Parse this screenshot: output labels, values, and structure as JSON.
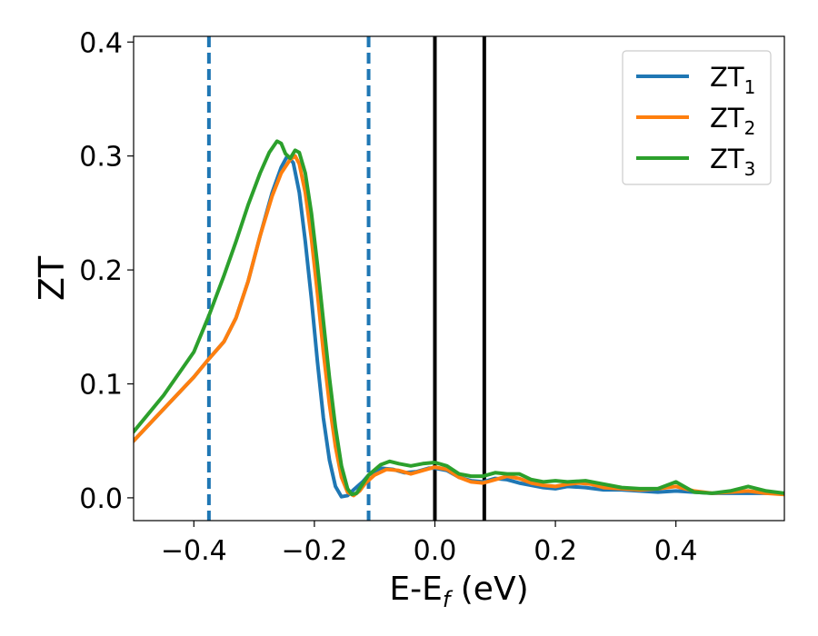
{
  "chart_data": {
    "type": "line",
    "xlabel": "E-E",
    "xlabel_sub": "f",
    "xlabel_unit": " (eV)",
    "ylabel": "ZT",
    "xlim": [
      -0.5,
      0.58
    ],
    "ylim": [
      -0.02,
      0.405
    ],
    "xticks": [
      -0.4,
      -0.2,
      0.0,
      0.2,
      0.4
    ],
    "xtick_labels": [
      "−0.4",
      "−0.2",
      "0.0",
      "0.2",
      "0.4"
    ],
    "yticks": [
      0.0,
      0.1,
      0.2,
      0.3,
      0.4
    ],
    "ytick_labels": [
      "0.0",
      "0.1",
      "0.2",
      "0.3",
      "0.4"
    ],
    "grid": false,
    "legend_position": "top-right",
    "vlines": [
      {
        "x": -0.375,
        "style": "dashed",
        "color": "#1f77b4"
      },
      {
        "x": -0.11,
        "style": "dashed",
        "color": "#1f77b4"
      },
      {
        "x": 0.0,
        "style": "solid",
        "color": "#000000"
      },
      {
        "x": 0.082,
        "style": "solid",
        "color": "#000000"
      }
    ],
    "series": [
      {
        "name": "ZT",
        "name_sub": "1",
        "color": "#1f77b4",
        "points": [
          [
            -0.5,
            0.05
          ],
          [
            -0.45,
            0.078
          ],
          [
            -0.4,
            0.106
          ],
          [
            -0.375,
            0.122
          ],
          [
            -0.35,
            0.137
          ],
          [
            -0.33,
            0.158
          ],
          [
            -0.31,
            0.19
          ],
          [
            -0.29,
            0.23
          ],
          [
            -0.27,
            0.268
          ],
          [
            -0.255,
            0.29
          ],
          [
            -0.245,
            0.3
          ],
          [
            -0.235,
            0.294
          ],
          [
            -0.225,
            0.268
          ],
          [
            -0.215,
            0.225
          ],
          [
            -0.205,
            0.175
          ],
          [
            -0.195,
            0.12
          ],
          [
            -0.185,
            0.07
          ],
          [
            -0.175,
            0.033
          ],
          [
            -0.165,
            0.01
          ],
          [
            -0.155,
            0.001
          ],
          [
            -0.145,
            0.002
          ],
          [
            -0.135,
            0.007
          ],
          [
            -0.12,
            0.014
          ],
          [
            -0.11,
            0.02
          ],
          [
            -0.09,
            0.026
          ],
          [
            -0.07,
            0.025
          ],
          [
            -0.05,
            0.022
          ],
          [
            -0.03,
            0.023
          ],
          [
            -0.01,
            0.026
          ],
          [
            0.0,
            0.026
          ],
          [
            0.02,
            0.024
          ],
          [
            0.04,
            0.018
          ],
          [
            0.06,
            0.015
          ],
          [
            0.08,
            0.014
          ],
          [
            0.1,
            0.017
          ],
          [
            0.12,
            0.016
          ],
          [
            0.14,
            0.013
          ],
          [
            0.16,
            0.011
          ],
          [
            0.18,
            0.009
          ],
          [
            0.2,
            0.008
          ],
          [
            0.22,
            0.01
          ],
          [
            0.25,
            0.009
          ],
          [
            0.28,
            0.007
          ],
          [
            0.31,
            0.007
          ],
          [
            0.34,
            0.006
          ],
          [
            0.37,
            0.005
          ],
          [
            0.4,
            0.006
          ],
          [
            0.43,
            0.005
          ],
          [
            0.46,
            0.004
          ],
          [
            0.49,
            0.004
          ],
          [
            0.52,
            0.004
          ],
          [
            0.55,
            0.004
          ],
          [
            0.58,
            0.004
          ]
        ]
      },
      {
        "name": "ZT",
        "name_sub": "2",
        "color": "#ff7f0e",
        "points": [
          [
            -0.5,
            0.05
          ],
          [
            -0.45,
            0.078
          ],
          [
            -0.4,
            0.106
          ],
          [
            -0.375,
            0.122
          ],
          [
            -0.35,
            0.137
          ],
          [
            -0.33,
            0.158
          ],
          [
            -0.31,
            0.19
          ],
          [
            -0.29,
            0.23
          ],
          [
            -0.27,
            0.265
          ],
          [
            -0.255,
            0.285
          ],
          [
            -0.24,
            0.297
          ],
          [
            -0.232,
            0.3
          ],
          [
            -0.225,
            0.293
          ],
          [
            -0.215,
            0.268
          ],
          [
            -0.205,
            0.228
          ],
          [
            -0.195,
            0.18
          ],
          [
            -0.185,
            0.128
          ],
          [
            -0.175,
            0.082
          ],
          [
            -0.165,
            0.045
          ],
          [
            -0.155,
            0.018
          ],
          [
            -0.145,
            0.005
          ],
          [
            -0.135,
            0.002
          ],
          [
            -0.125,
            0.006
          ],
          [
            -0.115,
            0.013
          ],
          [
            -0.1,
            0.02
          ],
          [
            -0.08,
            0.025
          ],
          [
            -0.06,
            0.024
          ],
          [
            -0.04,
            0.021
          ],
          [
            -0.02,
            0.024
          ],
          [
            0.0,
            0.027
          ],
          [
            0.02,
            0.025
          ],
          [
            0.04,
            0.018
          ],
          [
            0.06,
            0.014
          ],
          [
            0.08,
            0.013
          ],
          [
            0.1,
            0.016
          ],
          [
            0.12,
            0.019
          ],
          [
            0.14,
            0.017
          ],
          [
            0.16,
            0.013
          ],
          [
            0.18,
            0.011
          ],
          [
            0.2,
            0.01
          ],
          [
            0.22,
            0.012
          ],
          [
            0.24,
            0.013
          ],
          [
            0.26,
            0.012
          ],
          [
            0.28,
            0.009
          ],
          [
            0.31,
            0.008
          ],
          [
            0.34,
            0.007
          ],
          [
            0.37,
            0.008
          ],
          [
            0.4,
            0.01
          ],
          [
            0.43,
            0.006
          ],
          [
            0.46,
            0.004
          ],
          [
            0.49,
            0.005
          ],
          [
            0.52,
            0.006
          ],
          [
            0.55,
            0.004
          ],
          [
            0.58,
            0.003
          ]
        ]
      },
      {
        "name": "ZT",
        "name_sub": "3",
        "color": "#2ca02c",
        "points": [
          [
            -0.5,
            0.058
          ],
          [
            -0.45,
            0.09
          ],
          [
            -0.4,
            0.128
          ],
          [
            -0.375,
            0.16
          ],
          [
            -0.35,
            0.195
          ],
          [
            -0.33,
            0.225
          ],
          [
            -0.31,
            0.257
          ],
          [
            -0.29,
            0.285
          ],
          [
            -0.275,
            0.303
          ],
          [
            -0.262,
            0.313
          ],
          [
            -0.255,
            0.311
          ],
          [
            -0.248,
            0.302
          ],
          [
            -0.24,
            0.298
          ],
          [
            -0.232,
            0.305
          ],
          [
            -0.225,
            0.303
          ],
          [
            -0.215,
            0.285
          ],
          [
            -0.205,
            0.25
          ],
          [
            -0.195,
            0.205
          ],
          [
            -0.185,
            0.155
          ],
          [
            -0.175,
            0.105
          ],
          [
            -0.165,
            0.062
          ],
          [
            -0.155,
            0.028
          ],
          [
            -0.145,
            0.008
          ],
          [
            -0.138,
            0.003
          ],
          [
            -0.13,
            0.004
          ],
          [
            -0.12,
            0.012
          ],
          [
            -0.11,
            0.02
          ],
          [
            -0.09,
            0.029
          ],
          [
            -0.075,
            0.032
          ],
          [
            -0.06,
            0.03
          ],
          [
            -0.04,
            0.028
          ],
          [
            -0.02,
            0.03
          ],
          [
            0.0,
            0.031
          ],
          [
            0.02,
            0.028
          ],
          [
            0.04,
            0.021
          ],
          [
            0.06,
            0.019
          ],
          [
            0.08,
            0.019
          ],
          [
            0.1,
            0.022
          ],
          [
            0.12,
            0.021
          ],
          [
            0.14,
            0.021
          ],
          [
            0.16,
            0.016
          ],
          [
            0.18,
            0.014
          ],
          [
            0.2,
            0.015
          ],
          [
            0.22,
            0.014
          ],
          [
            0.25,
            0.015
          ],
          [
            0.28,
            0.012
          ],
          [
            0.31,
            0.009
          ],
          [
            0.34,
            0.008
          ],
          [
            0.37,
            0.008
          ],
          [
            0.4,
            0.014
          ],
          [
            0.43,
            0.005
          ],
          [
            0.46,
            0.004
          ],
          [
            0.49,
            0.006
          ],
          [
            0.52,
            0.01
          ],
          [
            0.55,
            0.006
          ],
          [
            0.58,
            0.004
          ]
        ]
      }
    ]
  }
}
